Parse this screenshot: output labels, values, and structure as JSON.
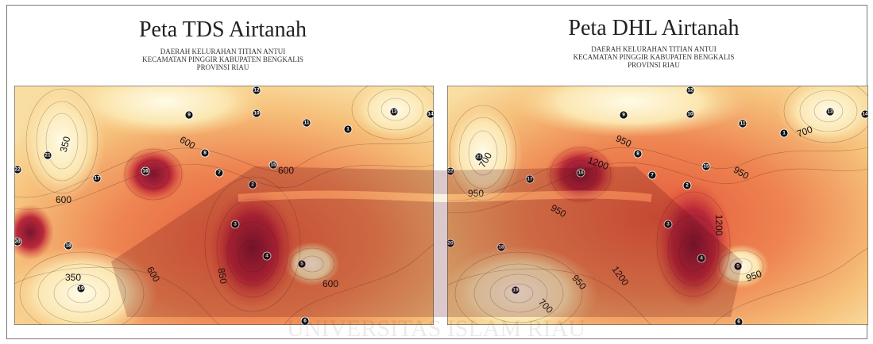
{
  "maps": [
    {
      "id": "tds",
      "title": "Peta TDS Airtanah",
      "subtitle_lines": [
        "DAERAH KELURAHAN TITIAN ANTUI",
        "KECAMATAN PINGGIR KABUPATEN BENGKALIS",
        "PROVINSI RIAU"
      ],
      "contour_labels": [
        "350",
        "600",
        "600",
        "600",
        "350",
        "600",
        "850",
        "600"
      ],
      "stations": [
        "1",
        "2",
        "3",
        "4",
        "5",
        "6",
        "7",
        "8",
        "9",
        "10",
        "11",
        "12",
        "13",
        "14",
        "15",
        "16",
        "17",
        "18",
        "19",
        "20",
        "21",
        "22"
      ],
      "colors": {
        "low": "#fbf0c8",
        "mid": "#f2b066",
        "high": "#e8553a",
        "peak": "#8e1b2c"
      }
    },
    {
      "id": "dhl",
      "title": "Peta DHL Airtanah",
      "subtitle_lines": [
        "DAERAH KELURAHAN TITIAN ANTUI",
        "KECAMATAN PINGGIR KABUPATEN BENGKALIS",
        "PROVINSI RIAU"
      ],
      "contour_labels": [
        "700",
        "950",
        "1200",
        "950",
        "700",
        "950",
        "1200",
        "950",
        "700",
        "950",
        "1200",
        "950"
      ],
      "stations": [
        "1",
        "2",
        "3",
        "4",
        "5",
        "6",
        "7",
        "8",
        "9",
        "10",
        "11",
        "12",
        "13",
        "14",
        "15",
        "16",
        "17",
        "18",
        "19",
        "20",
        "21",
        "22"
      ],
      "colors": {
        "low": "#fbf0c8",
        "mid": "#f2b066",
        "high": "#e8553a",
        "peak": "#8e1b2c"
      }
    }
  ],
  "watermark": {
    "text": "UNIVERSITAS ISLAM RIAU"
  }
}
